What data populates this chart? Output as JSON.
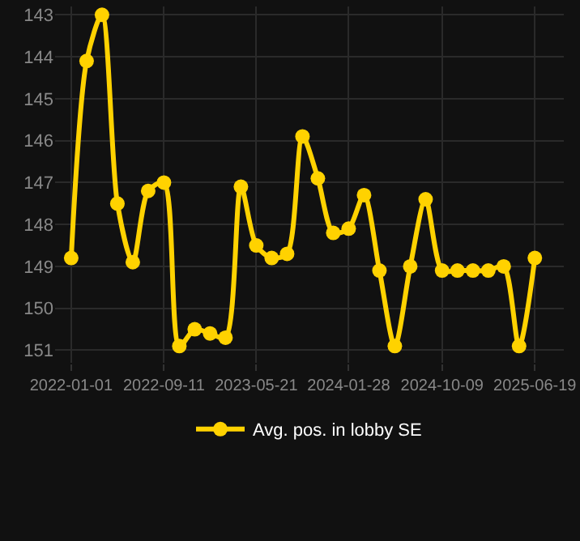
{
  "chart_data": {
    "type": "line",
    "x": [
      "2022-01-01",
      "2022-02-12",
      "2022-03-26",
      "2022-05-07",
      "2022-06-18",
      "2022-07-30",
      "2022-09-11",
      "2022-10-23",
      "2022-12-04",
      "2023-01-15",
      "2023-02-26",
      "2023-04-09",
      "2023-05-21",
      "2023-07-02",
      "2023-08-13",
      "2023-09-24",
      "2023-11-05",
      "2023-12-17",
      "2024-01-28",
      "2024-03-10",
      "2024-04-21",
      "2024-06-02",
      "2024-07-14",
      "2024-08-25",
      "2024-10-09",
      "2024-11-20",
      "2025-01-01",
      "2025-02-12",
      "2025-03-26",
      "2025-05-07",
      "2025-06-19"
    ],
    "series": [
      {
        "name": "Avg. pos. in lobby SE",
        "color": "#ffd200",
        "values": [
          148.8,
          144.1,
          143.0,
          147.5,
          148.9,
          147.2,
          147.0,
          150.9,
          150.5,
          150.6,
          150.7,
          147.1,
          148.5,
          148.8,
          148.7,
          145.9,
          146.9,
          148.2,
          148.1,
          147.3,
          149.1,
          150.9,
          149.0,
          147.4,
          149.1,
          149.1,
          149.1,
          149.1,
          149.0,
          150.9,
          148.8
        ]
      }
    ],
    "ylim": [
      151.3,
      142.8
    ],
    "yticks": [
      143,
      144,
      145,
      146,
      147,
      148,
      149,
      150,
      151
    ],
    "xlim": [
      "2021-11-18",
      "2025-09-06"
    ],
    "xticks": [
      {
        "value": "2022-01-01",
        "label": "2022-01-01"
      },
      {
        "value": "2022-09-11",
        "label": "2022-09-11"
      },
      {
        "value": "2023-05-21",
        "label": "2023-05-21"
      },
      {
        "value": "2024-01-28",
        "label": "2024-01-28"
      },
      {
        "value": "2024-10-09",
        "label": "2024-10-09"
      },
      {
        "value": "2025-06-19",
        "label": "2025-06-19"
      }
    ],
    "grid": true,
    "legend": "bottom",
    "marker": "circle",
    "line_style": "solid"
  }
}
